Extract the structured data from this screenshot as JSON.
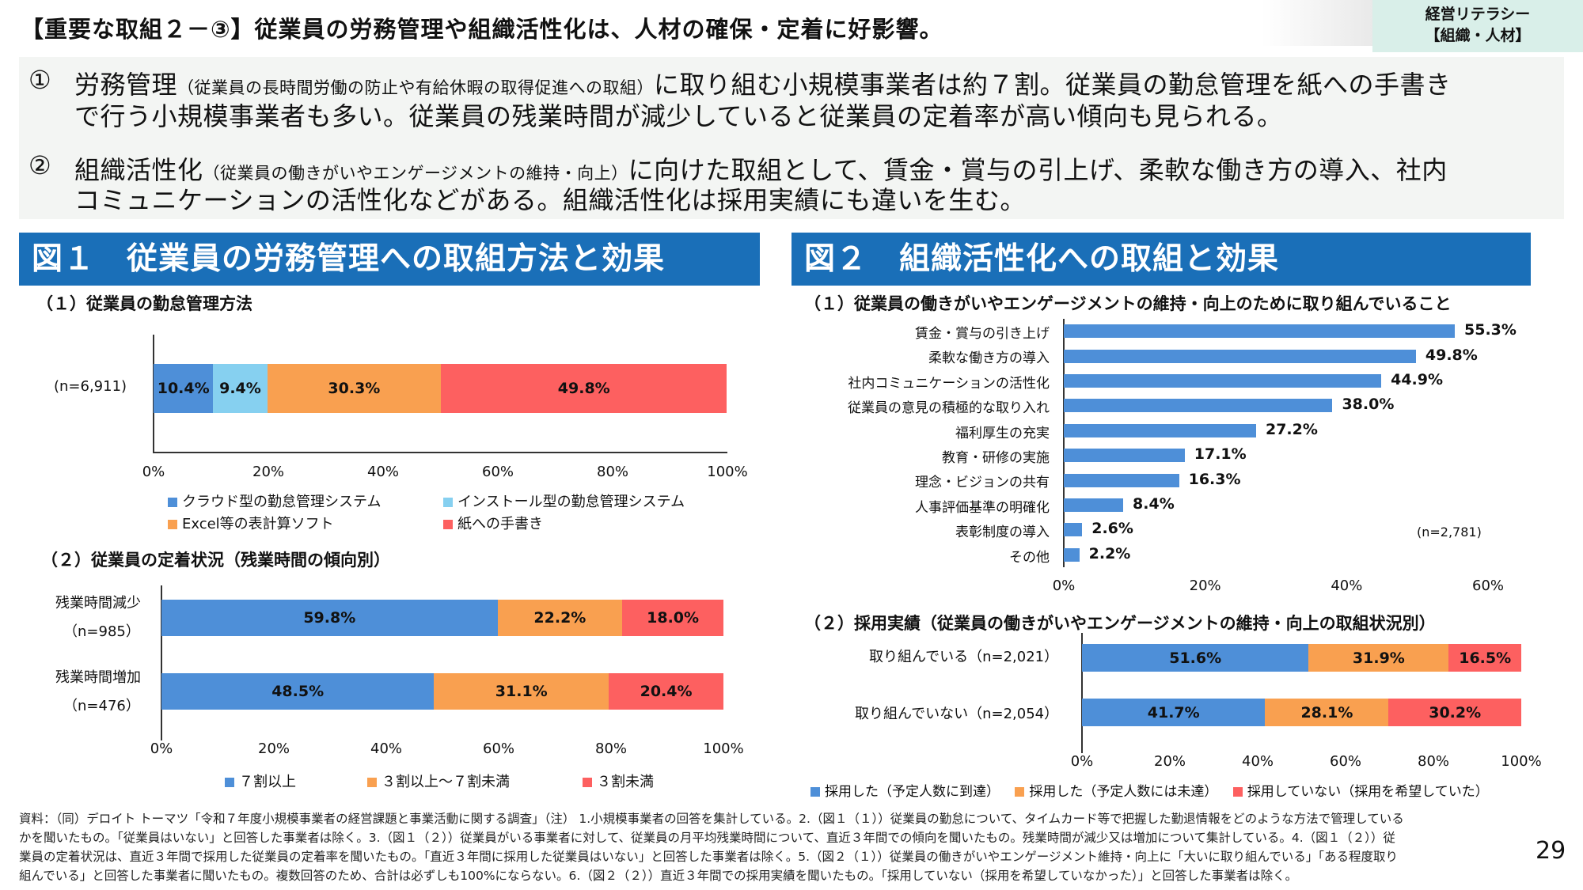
{
  "header": {
    "title": "【重要な取組２－③】従業員の労務管理や組織活性化は、人材の確保・定着に好影響。",
    "tag_line1": "経営リテラシー",
    "tag_line2": "【組織・人材】"
  },
  "summary": {
    "p1_num": "①",
    "p1_a": "労務管理",
    "p1_small": "（従業員の長時間労働の防止や有給休暇の取得促進への取組）",
    "p1_b": "に取り組む小規模事業者は約７割。従業員の勤怠管理を紙への手書き",
    "p1_c": "で行う小規模事業者も多い。従業員の残業時間が減少していると従業員の定着率が高い傾向も見られる。",
    "p2_num": "②",
    "p2_a": "組織活性化",
    "p2_small": "（従業員の働きがいやエンゲージメントの維持・向上）",
    "p2_b": "に向けた取組として、賃金・賞与の引上げ、柔軟な働き方の導入、社内",
    "p2_c": "コミュニケーションの活性化などがある。組織活性化は採用実績にも違いを生む。"
  },
  "fig1": {
    "heading": "図１　従業員の労務管理への取組方法と効果",
    "sub1": "（１）従業員の勤怠管理方法",
    "sub2": "（２）従業員の定着状況（残業時間の傾向別）"
  },
  "fig2": {
    "heading": "図２　組織活性化への取組と効果",
    "sub1": "（１）従業員の働きがいやエンゲージメントの維持・向上のために取り組んでいること",
    "sub2": "（２）採用実績（従業員の働きがいやエンゲージメントの維持・向上の取組状況別）"
  },
  "chart_data": [
    {
      "type": "bar",
      "orientation": "horizontal",
      "stacked": true,
      "row_label": "(n=6,911)",
      "series": [
        {
          "name": "クラウド型の勤怠管理システム",
          "values": [
            10.4
          ],
          "color": "#4e8fd8",
          "label": "10.4%"
        },
        {
          "name": "インストール型の勤怠管理システム",
          "values": [
            9.4
          ],
          "color": "#86d0f0",
          "label": "9.4%"
        },
        {
          "name": "Excel等の表計算ソフト",
          "values": [
            30.3
          ],
          "color": "#f9a050",
          "label": "30.3%"
        },
        {
          "name": "紙への手書き",
          "values": [
            49.8
          ],
          "color": "#fd6060",
          "label": "49.8%"
        }
      ],
      "xticks": [
        "0%",
        "20%",
        "40%",
        "60%",
        "80%",
        "100%"
      ],
      "xlim": [
        0,
        100
      ]
    },
    {
      "type": "bar",
      "orientation": "horizontal",
      "stacked": true,
      "categories": [
        "残業時間減少",
        "残業時間増加"
      ],
      "category_n": [
        "（n=985）",
        "（n=476）"
      ],
      "series": [
        {
          "name": "７割以上",
          "values": [
            59.8,
            48.5
          ],
          "labels": [
            "59.8%",
            "48.5%"
          ],
          "color": "#4e8fd8"
        },
        {
          "name": "３割以上～７割未満",
          "values": [
            22.2,
            31.1
          ],
          "labels": [
            "22.2%",
            "31.1%"
          ],
          "color": "#f9a050"
        },
        {
          "name": "３割未満",
          "values": [
            18.0,
            20.4
          ],
          "labels": [
            "18.0%",
            "20.4%"
          ],
          "color": "#fd6060"
        }
      ],
      "xticks": [
        "0%",
        "20%",
        "40%",
        "60%",
        "80%",
        "100%"
      ],
      "xlim": [
        0,
        100
      ]
    },
    {
      "type": "bar",
      "orientation": "horizontal",
      "categories": [
        "賃金・賞与の引き上げ",
        "柔軟な働き方の導入",
        "社内コミュニケーションの活性化",
        "従業員の意見の積極的な取り入れ",
        "福利厚生の充実",
        "教育・研修の実施",
        "理念・ビジョンの共有",
        "人事評価基準の明確化",
        "表彰制度の導入",
        "その他"
      ],
      "values": [
        55.3,
        49.8,
        44.9,
        38.0,
        27.2,
        17.1,
        16.3,
        8.4,
        2.6,
        2.2
      ],
      "labels": [
        "55.3%",
        "49.8%",
        "44.9%",
        "38.0%",
        "27.2%",
        "17.1%",
        "16.3%",
        "8.4%",
        "2.6%",
        "2.2%"
      ],
      "color": "#4e8fd8",
      "n_label": "(n=2,781)",
      "xticks": [
        "0%",
        "20%",
        "40%",
        "60%"
      ],
      "xlim": [
        0,
        60
      ]
    },
    {
      "type": "bar",
      "orientation": "horizontal",
      "stacked": true,
      "categories": [
        "取り組んでいる（n=2,021）",
        "取り組んでいない（n=2,054）"
      ],
      "series": [
        {
          "name": "採用した（予定人数に到達）",
          "values": [
            51.6,
            41.7
          ],
          "labels": [
            "51.6%",
            "41.7%"
          ],
          "color": "#4e8fd8"
        },
        {
          "name": "採用した（予定人数には未達）",
          "values": [
            31.9,
            28.1
          ],
          "labels": [
            "31.9%",
            "28.1%"
          ],
          "color": "#f9a050"
        },
        {
          "name": "採用していない（採用を希望していた）",
          "values": [
            16.5,
            30.2
          ],
          "labels": [
            "16.5%",
            "30.2%"
          ],
          "color": "#fd6060"
        }
      ],
      "xticks": [
        "0%",
        "20%",
        "40%",
        "60%",
        "80%",
        "100%"
      ],
      "xlim": [
        0,
        100
      ]
    }
  ],
  "footnote": {
    "line1": "資料：（同）デロイト トーマツ「令和７年度小規模事業者の経営課題と事業活動に関する調査」（注） 1.小規模事業者の回答を集計している。2.（図１（１））従業員の勤怠について、タイムカード等で把握した勤退情報をどのような方法で管理している",
    "line2": "かを聞いたもの。「従業員はいない」と回答した事業者は除く。3.（図１（２））従業員がいる事業者に対して、従業員の月平均残業時間について、直近３年間での傾向を聞いたもの。残業時間が減少又は増加について集計している。4.（図１（２））従",
    "line3": "業員の定着状況は、直近３年間で採用した従業員の定着率を聞いたもの。「直近３年間に採用した従業員はいない」と回答した事業者は除く。5.（図２（１））従業員の働きがいやエンゲージメント維持・向上に「大いに取り組んでいる」「ある程度取り",
    "line4": "組んでいる」と回答した事業者に聞いたもの。複数回答のため、合計は必ずしも100%にならない。6.（図２（２））直近３年間での採用実績を聞いたもの。「採用していない（採用を希望していなかった）」と回答した事業者は除く。"
  },
  "page_number": "29"
}
